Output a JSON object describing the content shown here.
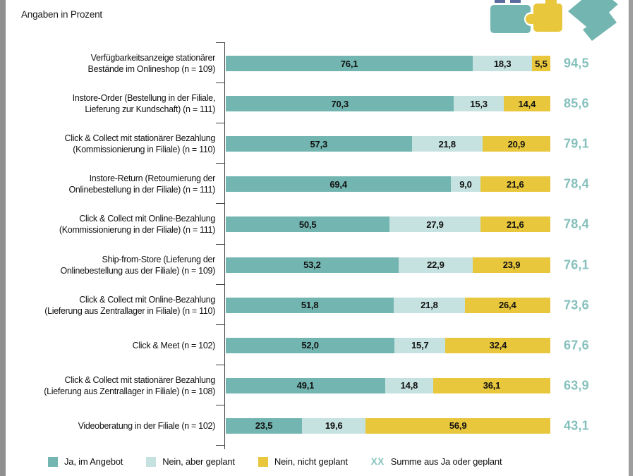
{
  "header": {
    "title": "Angaben in Prozent"
  },
  "colors": {
    "ja": "#73b6b1",
    "geplant": "#c6e2e0",
    "nicht_geplant": "#e8c73d",
    "sum_text": "#85c0bc",
    "axis": "#3d3d3d",
    "page_edge": "#8f8f8f"
  },
  "legend": [
    {
      "type": "swatch",
      "color": "#73b6b1",
      "label": "Ja, im Angebot",
      "icon": "teal-swatch"
    },
    {
      "type": "swatch",
      "color": "#c6e2e0",
      "label": "Nein, aber geplant",
      "icon": "light-teal-swatch"
    },
    {
      "type": "swatch",
      "color": "#e8c73d",
      "label": "Nein, nicht geplant",
      "icon": "yellow-swatch"
    },
    {
      "type": "symbol",
      "symbol": "XX",
      "label": "Summe aus Ja oder geplant",
      "icon": "xx-sum-symbol"
    }
  ],
  "chart_data": {
    "type": "bar",
    "orientation": "horizontal",
    "stacked": true,
    "unit": "percent",
    "title": "Angaben in Prozent",
    "xlim": [
      0,
      100
    ],
    "grid": false,
    "legend_position": "bottom",
    "series_names": [
      "Ja, im Angebot",
      "Nein, aber geplant",
      "Nein, nicht geplant"
    ],
    "rows": [
      {
        "label": "Verfügbarkeitsanzeige stationärer Bestände im Onlineshop (n = 109)",
        "label_lines": [
          "Verfügbarkeitsanzeige stationärer",
          "Bestände im Onlineshop (n = 109)"
        ],
        "values": [
          76.1,
          18.3,
          5.5
        ],
        "value_labels": [
          "76,1",
          "18,3",
          "5,5"
        ],
        "sum": 94.5,
        "sum_label": "94,5"
      },
      {
        "label": "Instore-Order (Bestellung in der Filiale, Lieferung zur Kundschaft) (n = 111)",
        "label_lines": [
          "Instore-Order (Bestellung in der Filiale,",
          "Lieferung zur Kundschaft) (n = 111)"
        ],
        "values": [
          70.3,
          15.3,
          14.4
        ],
        "value_labels": [
          "70,3",
          "15,3",
          "14,4"
        ],
        "sum": 85.6,
        "sum_label": "85,6"
      },
      {
        "label": "Click & Collect mit stationärer Bezahlung (Kommissionierung in Filiale) (n = 110)",
        "label_lines": [
          "Click & Collect mit stationärer Bezahlung",
          "(Kommissionierung in Filiale) (n = 110)"
        ],
        "values": [
          57.3,
          21.8,
          20.9
        ],
        "value_labels": [
          "57,3",
          "21,8",
          "20,9"
        ],
        "sum": 79.1,
        "sum_label": "79,1"
      },
      {
        "label": "Instore-Return (Retournierung der Onlinebestellung in der Filiale) (n = 111)",
        "label_lines": [
          "Instore-Return (Retournierung der",
          "Onlinebestellung in der Filiale) (n = 111)"
        ],
        "values": [
          69.4,
          9.0,
          21.6
        ],
        "value_labels": [
          "69,4",
          "9,0",
          "21,6"
        ],
        "sum": 78.4,
        "sum_label": "78,4"
      },
      {
        "label": "Click & Collect mit Online-Bezahlung (Kommissionierung in der Filiale) (n = 111)",
        "label_lines": [
          "Click & Collect mit Online-Bezahlung",
          "(Kommissionierung in der Filiale) (n = 111)"
        ],
        "values": [
          50.5,
          27.9,
          21.6
        ],
        "value_labels": [
          "50,5",
          "27,9",
          "21,6"
        ],
        "sum": 78.4,
        "sum_label": "78,4"
      },
      {
        "label": "Ship-from-Store (Lieferung der Onlinebestellung aus der Filiale) (n = 109)",
        "label_lines": [
          "Ship-from-Store (Lieferung der",
          "Onlinebestellung aus der Filiale) (n = 109)"
        ],
        "values": [
          53.2,
          22.9,
          23.9
        ],
        "value_labels": [
          "53,2",
          "22,9",
          "23,9"
        ],
        "sum": 76.1,
        "sum_label": "76,1"
      },
      {
        "label": "Click & Collect mit Online-Bezahlung (Lieferung aus Zentrallager in Filiale) (n = 110)",
        "label_lines": [
          "Click & Collect mit Online-Bezahlung",
          "(Lieferung aus Zentrallager in Filiale) (n = 110)"
        ],
        "values": [
          51.8,
          21.8,
          26.4
        ],
        "value_labels": [
          "51,8",
          "21,8",
          "26,4"
        ],
        "sum": 73.6,
        "sum_label": "73,6"
      },
      {
        "label": "Click & Meet (n = 102)",
        "label_lines": [
          "Click & Meet (n = 102)"
        ],
        "values": [
          52.0,
          15.7,
          32.4
        ],
        "value_labels": [
          "52,0",
          "15,7",
          "32,4"
        ],
        "sum": 67.6,
        "sum_label": "67,6"
      },
      {
        "label": "Click & Collect mit stationärer Bezahlung (Lieferung aus Zentrallager in Filiale) (n = 108)",
        "label_lines": [
          "Click & Collect mit stationärer Bezahlung",
          "(Lieferung aus Zentrallager in Filiale) (n = 108)"
        ],
        "values": [
          49.1,
          14.8,
          36.1
        ],
        "value_labels": [
          "49,1",
          "14,8",
          "36,1"
        ],
        "sum": 63.9,
        "sum_label": "63,9"
      },
      {
        "label": "Videoberatung in der Filiale (n = 102)",
        "label_lines": [
          "Videoberatung in der Filiale (n = 102)"
        ],
        "values": [
          23.5,
          19.6,
          56.9
        ],
        "value_labels": [
          "23,5",
          "19,6",
          "56,9"
        ],
        "sum": 43.1,
        "sum_label": "43,1"
      }
    ]
  }
}
